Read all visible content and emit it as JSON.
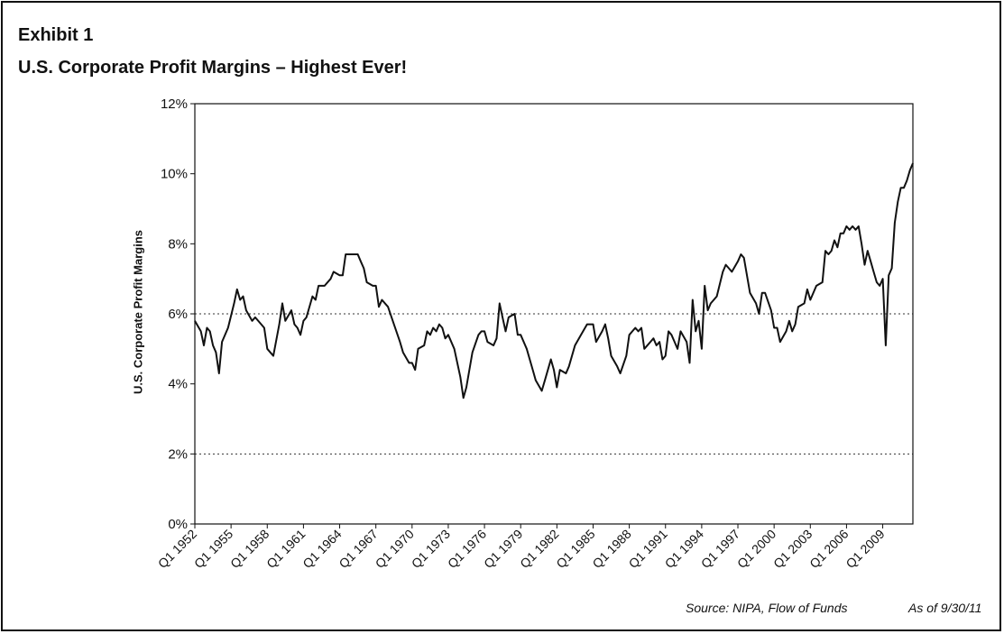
{
  "header": {
    "exhibit": "Exhibit 1",
    "title": "U.S. Corporate Profit Margins – Highest Ever!"
  },
  "footer": {
    "source": "Source:  NIPA, Flow of Funds",
    "as_of": "As of 9/30/11"
  },
  "chart_data": {
    "type": "line",
    "title": "U.S. Corporate Profit Margins – Highest Ever!",
    "xlabel": "",
    "ylabel": "U.S. Corporate Profit Margins",
    "ylim": [
      0,
      12
    ],
    "yticks": [
      "0%",
      "2%",
      "4%",
      "6%",
      "8%",
      "10%",
      "12%"
    ],
    "xlim": [
      1952.0,
      2011.5
    ],
    "xticks": [
      "Q1 1952",
      "Q1 1955",
      "Q1 1958",
      "Q1 1961",
      "Q1 1964",
      "Q1 1967",
      "Q1 1970",
      "Q1 1973",
      "Q1 1976",
      "Q1 1979",
      "Q1 1982",
      "Q1 1985",
      "Q1 1988",
      "Q1 1991",
      "Q1 1994",
      "Q1 1997",
      "Q1 2000",
      "Q1 2003",
      "Q1 2006",
      "Q1 2009"
    ],
    "gridlines": [
      2,
      6
    ],
    "series": [
      {
        "values": [
          [
            1952.0,
            5.8
          ],
          [
            1952.5,
            5.5
          ],
          [
            1952.75,
            5.1
          ],
          [
            1953.0,
            5.6
          ],
          [
            1953.25,
            5.5
          ],
          [
            1953.5,
            5.1
          ],
          [
            1953.75,
            4.9
          ],
          [
            1954.0,
            4.3
          ],
          [
            1954.25,
            5.2
          ],
          [
            1954.75,
            5.6
          ],
          [
            1955.25,
            6.3
          ],
          [
            1955.5,
            6.7
          ],
          [
            1955.75,
            6.4
          ],
          [
            1956.0,
            6.5
          ],
          [
            1956.25,
            6.1
          ],
          [
            1956.75,
            5.8
          ],
          [
            1957.0,
            5.9
          ],
          [
            1957.5,
            5.7
          ],
          [
            1957.75,
            5.6
          ],
          [
            1958.0,
            5.0
          ],
          [
            1958.25,
            4.9
          ],
          [
            1958.5,
            4.8
          ],
          [
            1959.0,
            5.7
          ],
          [
            1959.25,
            6.3
          ],
          [
            1959.5,
            5.8
          ],
          [
            1960.0,
            6.1
          ],
          [
            1960.25,
            5.7
          ],
          [
            1960.5,
            5.6
          ],
          [
            1960.75,
            5.4
          ],
          [
            1961.0,
            5.8
          ],
          [
            1961.25,
            5.9
          ],
          [
            1961.75,
            6.5
          ],
          [
            1962.0,
            6.4
          ],
          [
            1962.25,
            6.8
          ],
          [
            1962.75,
            6.8
          ],
          [
            1963.25,
            7.0
          ],
          [
            1963.5,
            7.2
          ],
          [
            1964.0,
            7.1
          ],
          [
            1964.25,
            7.1
          ],
          [
            1964.5,
            7.7
          ],
          [
            1965.0,
            7.7
          ],
          [
            1965.5,
            7.7
          ],
          [
            1965.75,
            7.5
          ],
          [
            1966.0,
            7.3
          ],
          [
            1966.25,
            6.9
          ],
          [
            1966.75,
            6.8
          ],
          [
            1967.0,
            6.8
          ],
          [
            1967.25,
            6.2
          ],
          [
            1967.5,
            6.4
          ],
          [
            1968.0,
            6.2
          ],
          [
            1968.5,
            5.7
          ],
          [
            1969.0,
            5.2
          ],
          [
            1969.25,
            4.9
          ],
          [
            1969.75,
            4.6
          ],
          [
            1970.0,
            4.6
          ],
          [
            1970.25,
            4.4
          ],
          [
            1970.5,
            5.0
          ],
          [
            1971.0,
            5.1
          ],
          [
            1971.25,
            5.5
          ],
          [
            1971.5,
            5.4
          ],
          [
            1971.75,
            5.6
          ],
          [
            1972.0,
            5.5
          ],
          [
            1972.25,
            5.7
          ],
          [
            1972.5,
            5.6
          ],
          [
            1972.75,
            5.3
          ],
          [
            1973.0,
            5.4
          ],
          [
            1973.5,
            5.0
          ],
          [
            1974.0,
            4.2
          ],
          [
            1974.25,
            3.6
          ],
          [
            1974.5,
            3.9
          ],
          [
            1975.0,
            4.9
          ],
          [
            1975.5,
            5.4
          ],
          [
            1975.75,
            5.5
          ],
          [
            1976.0,
            5.5
          ],
          [
            1976.25,
            5.2
          ],
          [
            1976.75,
            5.1
          ],
          [
            1977.0,
            5.3
          ],
          [
            1977.25,
            6.3
          ],
          [
            1977.5,
            5.9
          ],
          [
            1977.75,
            5.5
          ],
          [
            1978.0,
            5.9
          ],
          [
            1978.5,
            6.0
          ],
          [
            1978.75,
            5.4
          ],
          [
            1979.0,
            5.4
          ],
          [
            1979.5,
            5.0
          ],
          [
            1980.0,
            4.4
          ],
          [
            1980.25,
            4.1
          ],
          [
            1980.75,
            3.8
          ],
          [
            1981.0,
            4.1
          ],
          [
            1981.5,
            4.7
          ],
          [
            1981.75,
            4.4
          ],
          [
            1982.0,
            3.9
          ],
          [
            1982.25,
            4.4
          ],
          [
            1982.75,
            4.3
          ],
          [
            1983.0,
            4.5
          ],
          [
            1983.5,
            5.1
          ],
          [
            1984.0,
            5.4
          ],
          [
            1984.5,
            5.7
          ],
          [
            1985.0,
            5.7
          ],
          [
            1985.25,
            5.2
          ],
          [
            1985.75,
            5.5
          ],
          [
            1986.0,
            5.7
          ],
          [
            1986.25,
            5.3
          ],
          [
            1986.5,
            4.8
          ],
          [
            1987.0,
            4.5
          ],
          [
            1987.25,
            4.3
          ],
          [
            1987.75,
            4.8
          ],
          [
            1988.0,
            5.4
          ],
          [
            1988.5,
            5.6
          ],
          [
            1988.75,
            5.5
          ],
          [
            1989.0,
            5.6
          ],
          [
            1989.25,
            5.0
          ],
          [
            1989.75,
            5.2
          ],
          [
            1990.0,
            5.3
          ],
          [
            1990.25,
            5.1
          ],
          [
            1990.5,
            5.2
          ],
          [
            1990.75,
            4.7
          ],
          [
            1991.0,
            4.8
          ],
          [
            1991.25,
            5.5
          ],
          [
            1991.5,
            5.4
          ],
          [
            1991.75,
            5.2
          ],
          [
            1992.0,
            5.0
          ],
          [
            1992.25,
            5.5
          ],
          [
            1992.75,
            5.2
          ],
          [
            1993.0,
            4.6
          ],
          [
            1993.25,
            6.4
          ],
          [
            1993.5,
            5.5
          ],
          [
            1993.75,
            5.8
          ],
          [
            1994.0,
            5.0
          ],
          [
            1994.25,
            6.8
          ],
          [
            1994.5,
            6.1
          ],
          [
            1994.75,
            6.3
          ],
          [
            1995.25,
            6.5
          ],
          [
            1995.75,
            7.2
          ],
          [
            1996.0,
            7.4
          ],
          [
            1996.25,
            7.3
          ],
          [
            1996.5,
            7.2
          ],
          [
            1997.0,
            7.5
          ],
          [
            1997.25,
            7.7
          ],
          [
            1997.5,
            7.6
          ],
          [
            1998.0,
            6.6
          ],
          [
            1998.5,
            6.3
          ],
          [
            1998.75,
            6.0
          ],
          [
            1999.0,
            6.6
          ],
          [
            1999.25,
            6.6
          ],
          [
            1999.75,
            6.1
          ],
          [
            2000.0,
            5.6
          ],
          [
            2000.25,
            5.6
          ],
          [
            2000.5,
            5.2
          ],
          [
            2001.0,
            5.5
          ],
          [
            2001.25,
            5.8
          ],
          [
            2001.5,
            5.5
          ],
          [
            2001.75,
            5.7
          ],
          [
            2002.0,
            6.2
          ],
          [
            2002.5,
            6.3
          ],
          [
            2002.75,
            6.7
          ],
          [
            2003.0,
            6.4
          ],
          [
            2003.5,
            6.8
          ],
          [
            2004.0,
            6.9
          ],
          [
            2004.25,
            7.8
          ],
          [
            2004.5,
            7.7
          ],
          [
            2004.75,
            7.8
          ],
          [
            2005.0,
            8.1
          ],
          [
            2005.25,
            7.9
          ],
          [
            2005.5,
            8.3
          ],
          [
            2005.75,
            8.3
          ],
          [
            2006.0,
            8.5
          ],
          [
            2006.25,
            8.4
          ],
          [
            2006.5,
            8.5
          ],
          [
            2006.75,
            8.4
          ],
          [
            2007.0,
            8.5
          ],
          [
            2007.25,
            8.0
          ],
          [
            2007.5,
            7.4
          ],
          [
            2007.75,
            7.8
          ],
          [
            2008.0,
            7.5
          ],
          [
            2008.25,
            7.2
          ],
          [
            2008.5,
            6.9
          ],
          [
            2008.75,
            6.8
          ],
          [
            2009.0,
            7.0
          ],
          [
            2009.25,
            5.1
          ],
          [
            2009.5,
            7.1
          ],
          [
            2009.75,
            7.3
          ],
          [
            2010.0,
            8.6
          ],
          [
            2010.25,
            9.2
          ],
          [
            2010.5,
            9.6
          ],
          [
            2010.75,
            9.6
          ],
          [
            2011.0,
            9.8
          ],
          [
            2011.25,
            10.1
          ],
          [
            2011.5,
            10.3
          ]
        ]
      }
    ]
  }
}
